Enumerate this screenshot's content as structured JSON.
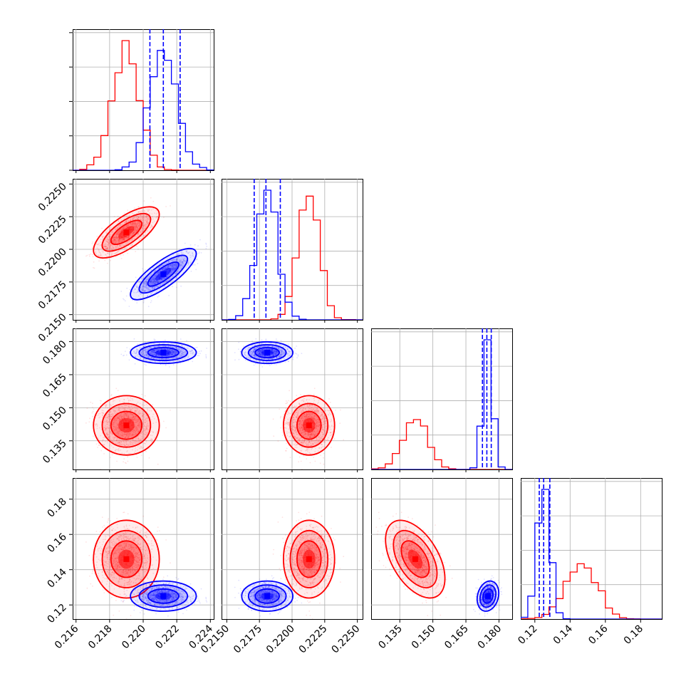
{
  "chart_data": {
    "type": "corner",
    "grid": true,
    "colors": {
      "series_a": "#ff0000",
      "series_b": "#0000ff"
    },
    "series": [
      {
        "color": "#ff0000",
        "means": [
          0.219,
          0.2213,
          0.142,
          0.146
        ],
        "sds": [
          0.0008,
          0.0008,
          0.0055,
          0.009
        ]
      },
      {
        "color": "#0000ff",
        "means": [
          0.2212,
          0.2181,
          0.175,
          0.125
        ],
        "sds": [
          0.0008,
          0.0008,
          0.002,
          0.0035
        ]
      }
    ],
    "correlations": {
      "series_a": [
        [
          1,
          0.7,
          0,
          0
        ],
        [
          0.7,
          1,
          0,
          0
        ],
        [
          0,
          0,
          1,
          -0.5
        ],
        [
          0,
          0,
          -0.5,
          1
        ]
      ],
      "series_b": [
        [
          1,
          0.8,
          0,
          0
        ],
        [
          0.8,
          1,
          0,
          0
        ],
        [
          0,
          0,
          1,
          0.2
        ],
        [
          0,
          0,
          0.2,
          1
        ]
      ]
    },
    "quantile_lines": {
      "color": "#0000ff",
      "values": [
        [
          0.2204,
          0.2212,
          0.2222
        ],
        [
          0.2171,
          0.218,
          0.2191
        ],
        [
          0.1725,
          0.1745,
          0.1765
        ],
        [
          0.1225,
          0.125,
          0.1285
        ]
      ]
    },
    "axis_ranges": [
      [
        0.2158,
        0.2242
      ],
      [
        0.2146,
        0.2254
      ],
      [
        0.122,
        0.186
      ],
      [
        0.112,
        0.192
      ]
    ],
    "ticks": [
      [
        0.216,
        0.218,
        0.22,
        0.222,
        0.224
      ],
      [
        0.215,
        0.2175,
        0.22,
        0.2225,
        0.225
      ],
      [
        0.135,
        0.15,
        0.165,
        0.18
      ],
      [
        0.12,
        0.14,
        0.16,
        0.18
      ]
    ],
    "tick_labels": [
      [
        "0.216",
        "0.218",
        "0.220",
        "0.222",
        "0.224"
      ],
      [
        "0.2150",
        "0.2175",
        "0.2200",
        "0.2225",
        "0.2250"
      ],
      [
        "0.135",
        "0.150",
        "0.165",
        "0.180"
      ],
      [
        "0.12",
        "0.14",
        "0.16",
        "0.18"
      ]
    ]
  }
}
